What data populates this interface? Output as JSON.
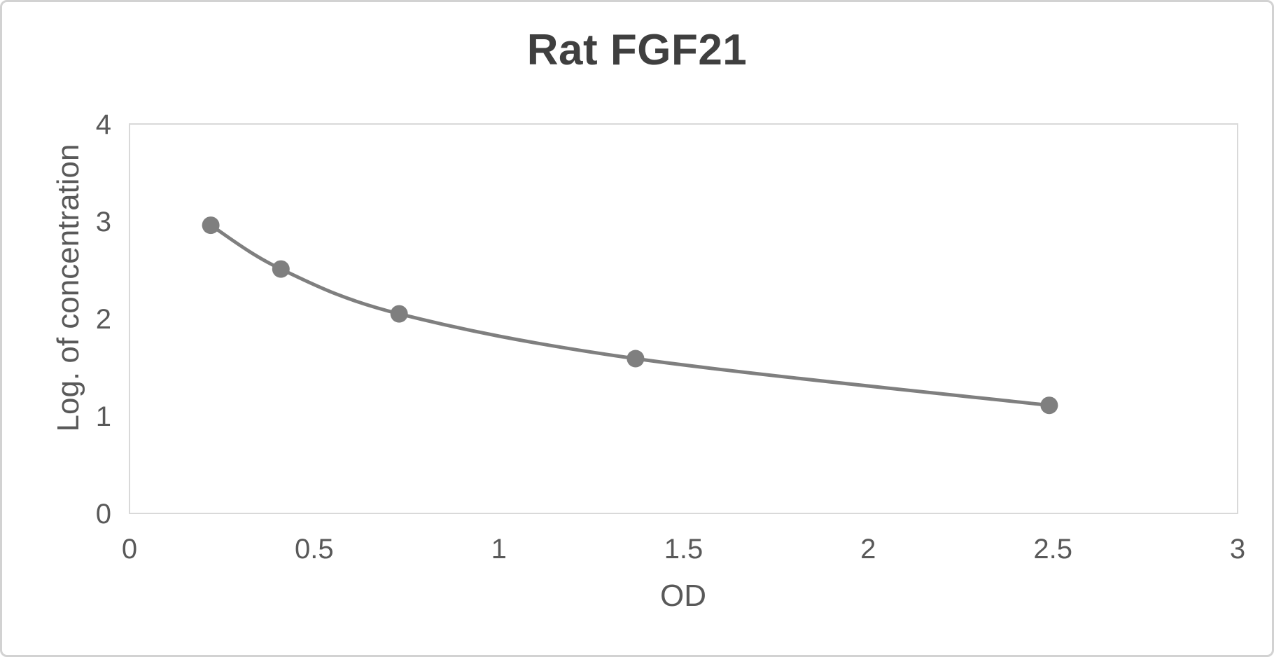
{
  "figure": {
    "background": "#ffffff",
    "border_color": "#d2d2d2"
  },
  "chart_data": {
    "type": "line",
    "title": "Rat FGF21",
    "xlabel": "OD",
    "ylabel": "Log. of concentration",
    "x": [
      0.22,
      0.41,
      0.73,
      1.37,
      2.49
    ],
    "y": [
      2.96,
      2.51,
      2.05,
      1.59,
      1.11
    ],
    "xlim": [
      0,
      3
    ],
    "ylim": [
      0,
      4
    ],
    "x_ticks": [
      0,
      0.5,
      1,
      1.5,
      2,
      2.5,
      3
    ],
    "y_ticks": [
      0,
      1,
      2,
      3,
      4
    ],
    "grid": false,
    "legend": false,
    "line_style": "smooth",
    "marker": "circle",
    "colors": {
      "series": "#7f7f7f",
      "plot_border": "#d9d9d9",
      "tick_label": "#595959",
      "axis_title": "#595959",
      "title": "#3f3f3f"
    }
  }
}
